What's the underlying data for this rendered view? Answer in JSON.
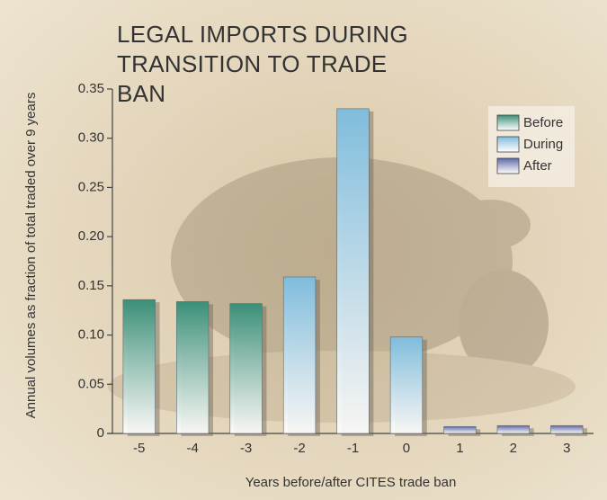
{
  "chart_data": {
    "type": "bar",
    "title": "LEGAL IMPORTS DURING TRANSITION TO TRADE BAN",
    "x_label": "Years before/after CITES trade ban",
    "y_label": "Annual volumes as fraction of total traded over 9 years",
    "categories": [
      "-5",
      "-4",
      "-3",
      "-2",
      "-1",
      "0",
      "1",
      "2",
      "3"
    ],
    "series": [
      {
        "name": "Before",
        "color": "#3a8f78",
        "values": [
          0.136,
          0.134,
          0.132,
          null,
          null,
          null,
          null,
          null,
          null
        ]
      },
      {
        "name": "During",
        "color": "#7fbcdc",
        "values": [
          null,
          null,
          null,
          0.159,
          0.33,
          0.098,
          null,
          null,
          null
        ]
      },
      {
        "name": "After",
        "color": "#5b67a6",
        "values": [
          null,
          null,
          null,
          null,
          null,
          null,
          0.007,
          0.008,
          0.008
        ]
      }
    ],
    "ylim": [
      0,
      0.35
    ],
    "yticks": [
      0,
      0.05,
      {
        "value": 0.1,
        "label": "0.10"
      },
      0.15,
      {
        "value": 0.2,
        "label": "0.20"
      },
      0.25,
      {
        "value": 0.3,
        "label": "0.30"
      },
      0.35
    ],
    "grid": false,
    "legend": "top-right"
  }
}
